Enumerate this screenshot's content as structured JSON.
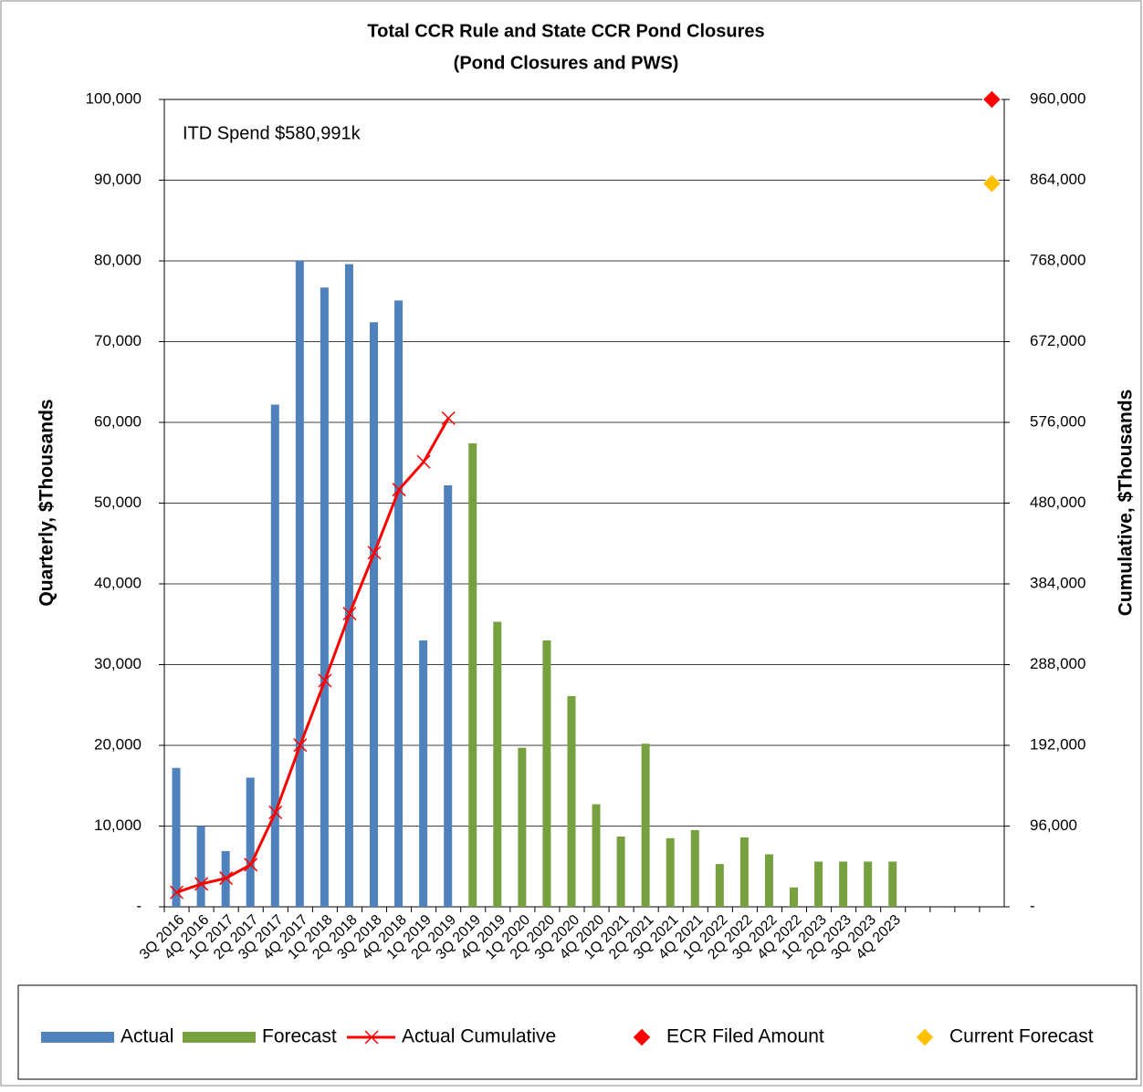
{
  "chart_data": {
    "type": "combo",
    "title": "Total CCR Rule and State CCR Pond Closures",
    "subtitle": "(Pond Closures and PWS)",
    "y_label": "Quarterly, $Thousands",
    "y2_label": "Cumulative, $Thousands",
    "annotation": "ITD Spend  $580,991k",
    "grid": true,
    "legend": "bottom",
    "categories": [
      "3Q 2016",
      "4Q 2016",
      "1Q 2017",
      "2Q 2017",
      "3Q 2017",
      "4Q 2017",
      "1Q 2018",
      "2Q 2018",
      "3Q 2018",
      "4Q 2018",
      "1Q 2019",
      "2Q 2019",
      "3Q 2019",
      "4Q 2019",
      "1Q 2020",
      "2Q 2020",
      "3Q 2020",
      "4Q 2020",
      "1Q 2021",
      "2Q 2021",
      "3Q 2021",
      "4Q 2021",
      "1Q 2022",
      "2Q 2022",
      "3Q 2022",
      "4Q 2022",
      "1Q 2023",
      "2Q 2023",
      "3Q 2023",
      "4Q 2023",
      null,
      null,
      null,
      null
    ],
    "ylim": [
      0,
      100000
    ],
    "yticks": [
      {
        "value": 0,
        "label": "-"
      },
      {
        "value": 10000,
        "label": "10,000"
      },
      {
        "value": 20000,
        "label": "20,000"
      },
      {
        "value": 30000,
        "label": "30,000"
      },
      {
        "value": 40000,
        "label": "40,000"
      },
      {
        "value": 50000,
        "label": "50,000"
      },
      {
        "value": 60000,
        "label": "60,000"
      },
      {
        "value": 70000,
        "label": "70,000"
      },
      {
        "value": 80000,
        "label": "80,000"
      },
      {
        "value": 90000,
        "label": "90,000"
      },
      {
        "value": 100000,
        "label": "100,000"
      }
    ],
    "y2lim": [
      0,
      960000
    ],
    "y2ticks": [
      {
        "value": 0,
        "label": "-"
      },
      {
        "value": 96000,
        "label": "96,000"
      },
      {
        "value": 192000,
        "label": "192,000"
      },
      {
        "value": 288000,
        "label": "288,000"
      },
      {
        "value": 384000,
        "label": "384,000"
      },
      {
        "value": 480000,
        "label": "480,000"
      },
      {
        "value": 576000,
        "label": "576,000"
      },
      {
        "value": 672000,
        "label": "672,000"
      },
      {
        "value": 768000,
        "label": "768,000"
      },
      {
        "value": 864000,
        "label": "864,000"
      },
      {
        "value": 960000,
        "label": "960,000"
      }
    ],
    "series": [
      {
        "name": "Actual",
        "type": "bar",
        "color": "#4f81bd",
        "values": [
          17200,
          10000,
          6900,
          16000,
          62200,
          80000,
          76700,
          79600,
          72400,
          75100,
          33000,
          52200,
          null,
          null,
          null,
          null,
          null,
          null,
          null,
          null,
          null,
          null,
          null,
          null,
          null,
          null,
          null,
          null,
          null,
          null,
          null,
          null,
          null,
          null
        ]
      },
      {
        "name": "Forecast",
        "type": "bar",
        "color": "#77a03e",
        "values": [
          null,
          null,
          null,
          null,
          null,
          null,
          null,
          null,
          null,
          null,
          null,
          null,
          57400,
          35300,
          19700,
          33000,
          26100,
          12700,
          8700,
          20200,
          8500,
          9500,
          5300,
          8600,
          6500,
          2400,
          5600,
          5600,
          5600,
          5600,
          null,
          null,
          null,
          null
        ]
      },
      {
        "name": "Actual Cumulative",
        "type": "line",
        "axis": "y2",
        "color": "#ff0000",
        "values": [
          17200,
          27200,
          34100,
          50100,
          112300,
          192300,
          269000,
          348600,
          421000,
          496100,
          529100,
          580991,
          null,
          null,
          null,
          null,
          null,
          null,
          null,
          null,
          null,
          null,
          null,
          null,
          null,
          null,
          null,
          null,
          null,
          null,
          null,
          null,
          null,
          null
        ]
      },
      {
        "name": "ECR Filed Amount",
        "type": "scatter",
        "axis": "y2",
        "color": "#ff0000",
        "values": [
          null,
          null,
          null,
          null,
          null,
          null,
          null,
          null,
          null,
          null,
          null,
          null,
          null,
          null,
          null,
          null,
          null,
          null,
          null,
          null,
          null,
          null,
          null,
          null,
          null,
          null,
          null,
          null,
          null,
          null,
          null,
          null,
          null,
          960000
        ]
      },
      {
        "name": "Current Forecast",
        "type": "scatter",
        "axis": "y2",
        "color": "#ffc000",
        "values": [
          null,
          null,
          null,
          null,
          null,
          null,
          null,
          null,
          null,
          null,
          null,
          null,
          null,
          null,
          null,
          null,
          null,
          null,
          null,
          null,
          null,
          null,
          null,
          null,
          null,
          null,
          null,
          null,
          null,
          null,
          null,
          null,
          null,
          860000
        ]
      }
    ]
  }
}
